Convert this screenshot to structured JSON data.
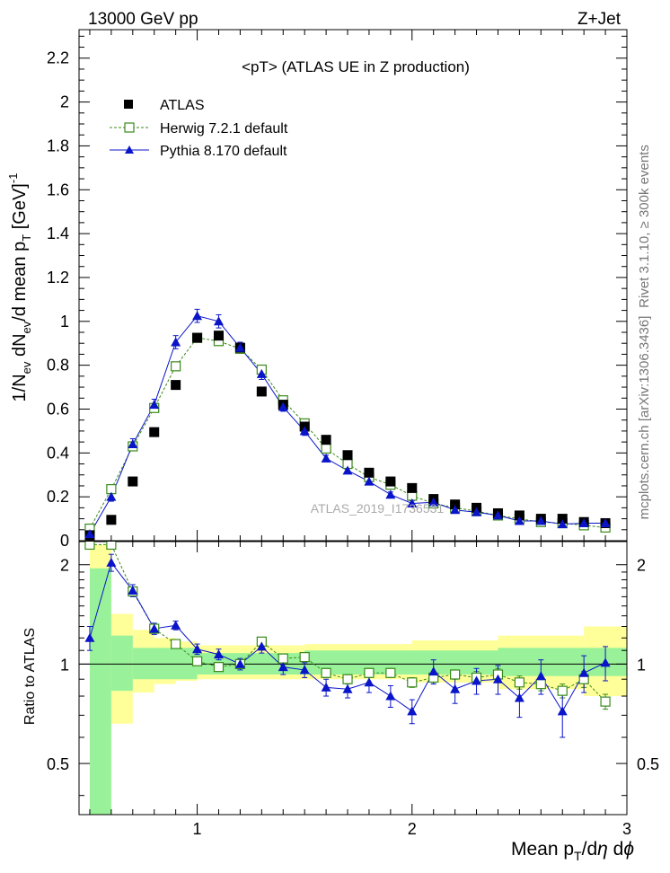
{
  "header": {
    "left": "13000 GeV pp",
    "right": "Z+Jet"
  },
  "side_text": {
    "rivet": "Rivet 3.1.10, ≥ 300k events",
    "mcplots": "mcplots.cern.ch [arXiv:1306.3436]"
  },
  "watermark": "ATLAS_2019_I1736531",
  "chart_data": {
    "type": "line",
    "title": "<pT>  (ATLAS UE in Z production)",
    "xlabel": "Mean p_T/dη dφ",
    "ylabel": "1/N_ev dN_ev/d mean p_T [GeV]^-1",
    "ratio_ylabel": "Ratio to ATLAS",
    "xlim": [
      0.45,
      3.0
    ],
    "ylim": [
      0,
      2.33
    ],
    "ratio_ylim": [
      0.35,
      2.35
    ],
    "ratio_yscale": "log",
    "x_ticks": [
      1,
      2,
      3
    ],
    "y_ticks": [
      0,
      0.2,
      0.4,
      0.6,
      0.8,
      1,
      1.2,
      1.4,
      1.6,
      1.8,
      2,
      2.2
    ],
    "ratio_y_ticks": [
      0.5,
      1,
      2
    ],
    "legend_position": "top-left",
    "x": [
      0.5,
      0.6,
      0.7,
      0.8,
      0.9,
      1.0,
      1.1,
      1.2,
      1.3,
      1.4,
      1.5,
      1.6,
      1.7,
      1.8,
      1.9,
      2.0,
      2.1,
      2.2,
      2.3,
      2.4,
      2.5,
      2.6,
      2.7,
      2.8,
      2.9
    ],
    "series": [
      {
        "name": "ATLAS",
        "color": "#000000",
        "marker": "square-filled",
        "values": [
          0.025,
          0.095,
          0.27,
          0.495,
          0.71,
          0.925,
          0.935,
          0.88,
          0.68,
          0.62,
          0.52,
          0.46,
          0.39,
          0.31,
          0.27,
          0.24,
          0.19,
          0.165,
          0.15,
          0.125,
          0.115,
          0.1,
          0.1,
          0.085,
          0.08
        ],
        "ratio": [
          1,
          1,
          1,
          1,
          1,
          1,
          1,
          1,
          1,
          1,
          1,
          1,
          1,
          1,
          1,
          1,
          1,
          1,
          1,
          1,
          1,
          1,
          1,
          1,
          1
        ]
      },
      {
        "name": "Herwig 7.2.1 default",
        "color": "#3a8a1a",
        "marker": "square-open",
        "dashed": true,
        "values": [
          0.055,
          0.235,
          0.43,
          0.605,
          0.795,
          0.925,
          0.91,
          0.875,
          0.78,
          0.64,
          0.535,
          0.42,
          0.35,
          0.29,
          0.255,
          0.205,
          0.17,
          0.15,
          0.135,
          0.115,
          0.1,
          0.085,
          0.08,
          0.07,
          0.06
        ],
        "ratio": [
          2.3,
          2.3,
          1.66,
          1.28,
          1.15,
          1.02,
          0.98,
          1.0,
          1.17,
          1.04,
          1.05,
          0.94,
          0.9,
          0.94,
          0.94,
          0.88,
          0.91,
          0.93,
          0.91,
          0.93,
          0.88,
          0.87,
          0.83,
          0.9,
          0.77
        ],
        "ratio_err": [
          0,
          0,
          0.04,
          0.04,
          0.03,
          0.02,
          0.02,
          0.02,
          0.03,
          0.03,
          0.03,
          0.03,
          0.03,
          0.03,
          0.03,
          0.03,
          0.03,
          0.03,
          0.04,
          0.04,
          0.04,
          0.04,
          0.04,
          0.05,
          0.04
        ]
      },
      {
        "name": "Pythia 8.170 default",
        "color": "#0a14c8",
        "marker": "triangle-filled",
        "dashed": false,
        "values": [
          0.03,
          0.2,
          0.44,
          0.62,
          0.905,
          1.025,
          1.0,
          0.88,
          0.76,
          0.61,
          0.5,
          0.375,
          0.32,
          0.27,
          0.21,
          0.17,
          0.175,
          0.14,
          0.13,
          0.115,
          0.09,
          0.09,
          0.075,
          0.08,
          0.08
        ],
        "errors": [
          0.01,
          0.02,
          0.025,
          0.025,
          0.03,
          0.03,
          0.03,
          0.025,
          0.025,
          0.02,
          0.02,
          0.015,
          0.015,
          0.015,
          0.012,
          0.012,
          0.012,
          0.01,
          0.01,
          0.01,
          0.01,
          0.01,
          0.01,
          0.01,
          0.01
        ],
        "ratio": [
          1.2,
          2.03,
          1.67,
          1.28,
          1.31,
          1.11,
          1.07,
          1.0,
          1.13,
          0.98,
          0.96,
          0.85,
          0.84,
          0.88,
          0.8,
          0.72,
          0.95,
          0.84,
          0.89,
          0.9,
          0.79,
          0.92,
          0.72,
          0.94,
          1.01
        ],
        "ratio_err": [
          0.1,
          0.12,
          0.07,
          0.05,
          0.04,
          0.04,
          0.04,
          0.04,
          0.05,
          0.05,
          0.05,
          0.05,
          0.05,
          0.06,
          0.06,
          0.06,
          0.08,
          0.08,
          0.08,
          0.09,
          0.1,
          0.11,
          0.12,
          0.12,
          0.12
        ]
      }
    ],
    "ratio_band_green": [
      [
        0.5,
        0.6,
        0.35,
        1.95
      ],
      [
        0.6,
        0.7,
        0.83,
        1.22
      ],
      [
        0.7,
        1.0,
        0.9,
        1.12
      ],
      [
        1.0,
        1.5,
        0.93,
        1.08
      ],
      [
        1.5,
        2.4,
        0.93,
        1.1
      ],
      [
        2.4,
        3.0,
        0.92,
        1.12
      ]
    ],
    "ratio_band_yellow": [
      [
        0.5,
        0.6,
        0.35,
        2.3
      ],
      [
        0.6,
        0.7,
        0.66,
        1.42
      ],
      [
        0.7,
        0.8,
        0.82,
        1.27
      ],
      [
        0.8,
        0.9,
        0.87,
        1.2
      ],
      [
        0.9,
        1.0,
        0.89,
        1.17
      ],
      [
        1.0,
        1.5,
        0.9,
        1.14
      ],
      [
        1.5,
        2.0,
        0.9,
        1.15
      ],
      [
        2.0,
        2.4,
        0.88,
        1.18
      ],
      [
        2.4,
        2.8,
        0.84,
        1.22
      ],
      [
        2.8,
        3.0,
        0.8,
        1.3
      ]
    ]
  }
}
